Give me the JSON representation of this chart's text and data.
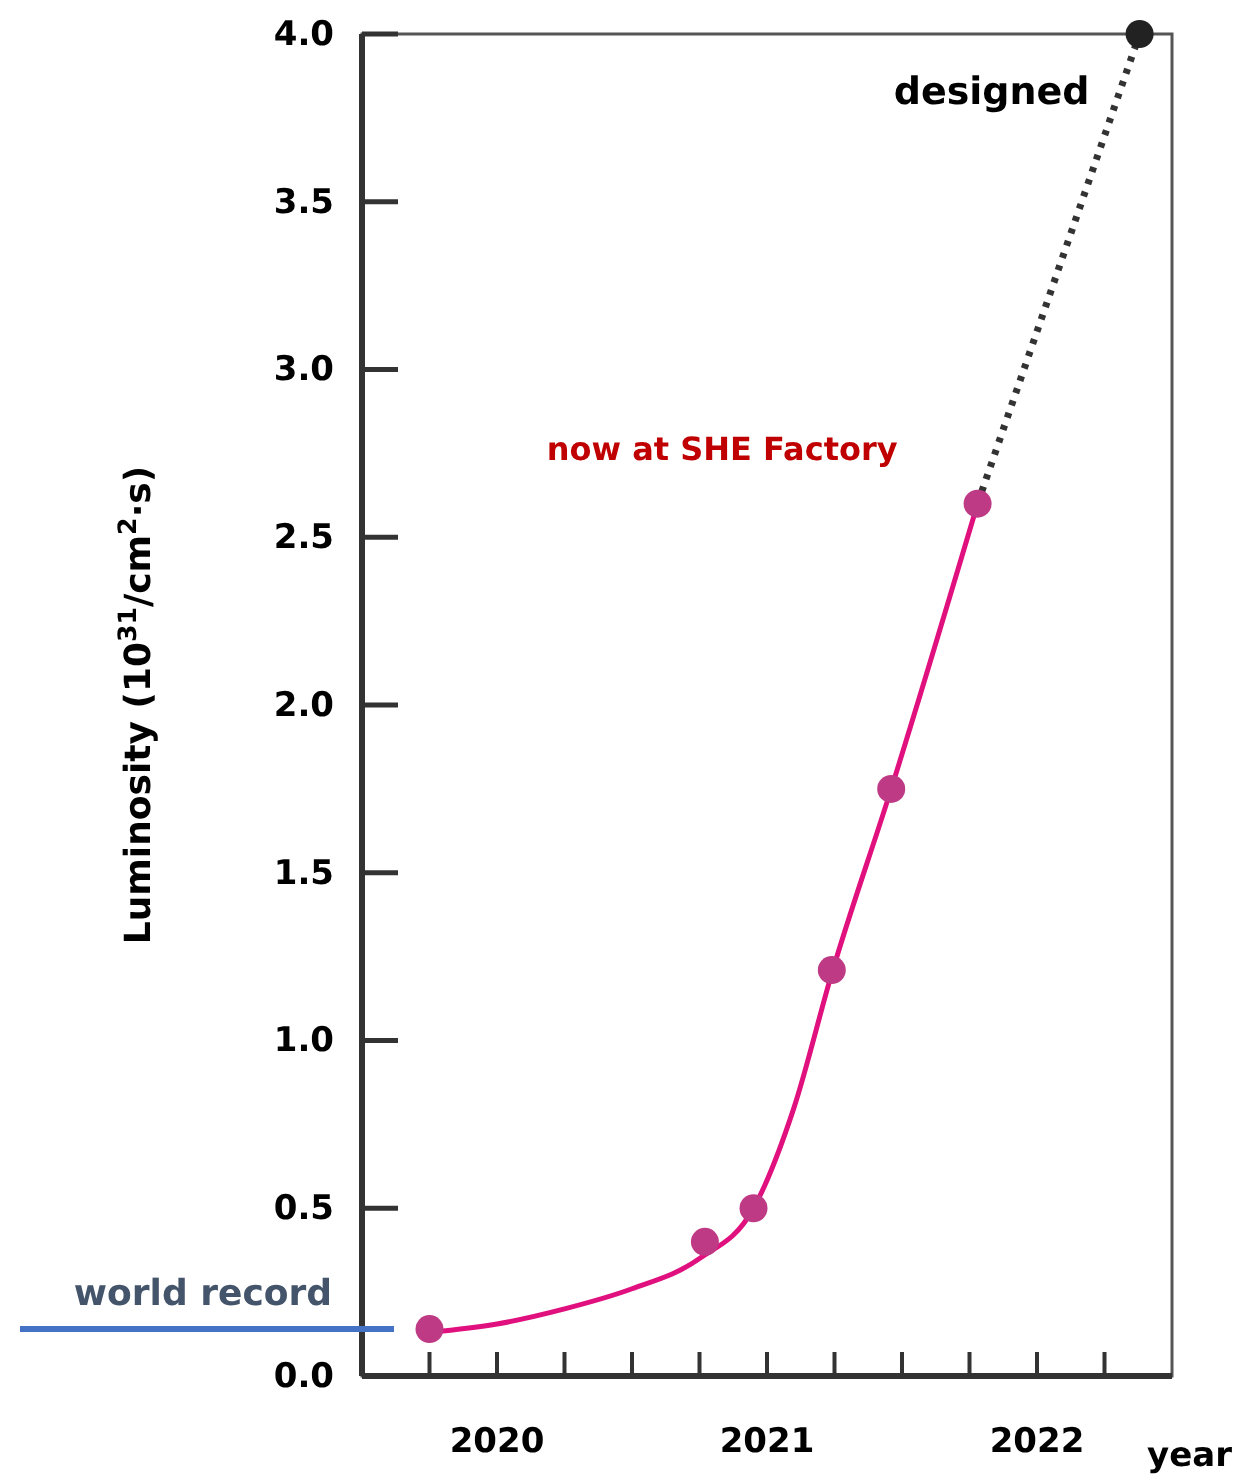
{
  "chart_data": {
    "type": "scatter",
    "ylabel": "Luminosity  (10$^{31}$/cm$^{2}$·s)",
    "xlabel": "year",
    "xlim": [
      2020,
      2023
    ],
    "xticks": [
      {
        "value": 2020.25,
        "label": null
      },
      {
        "value": 2020.5,
        "label": "2020"
      },
      {
        "value": 2020.75,
        "label": null
      },
      {
        "value": 2021,
        "label": null
      },
      {
        "value": 2021.25,
        "label": null
      },
      {
        "value": 2021.5,
        "label": "2021"
      },
      {
        "value": 2021.75,
        "label": null
      },
      {
        "value": 2022,
        "label": null
      },
      {
        "value": 2022.25,
        "label": null
      },
      {
        "value": 2022.5,
        "label": "2022"
      },
      {
        "value": 2022.75,
        "label": null
      }
    ],
    "ylim": [
      0,
      4
    ],
    "yticks": [
      {
        "value": 0,
        "label": "0.0"
      },
      0.5,
      {
        "value": 1,
        "label": "1.0"
      },
      1.5,
      {
        "value": 2,
        "label": "2.0"
      },
      2.5,
      {
        "value": 3,
        "label": "3.0"
      },
      3.5,
      {
        "value": 4,
        "label": "4.0"
      }
    ],
    "grid": false,
    "legend": false,
    "marker": "circle",
    "series": [
      {
        "type": "line",
        "color": "#e0107f",
        "x": [
          2020.25,
          2020.5,
          2020.75,
          2021.0,
          2021.25,
          2021.45,
          2021.6,
          2021.74,
          2021.96,
          2022.28
        ],
        "values": [
          0.13,
          0.155,
          0.2,
          0.26,
          0.35,
          0.5,
          0.8,
          1.2,
          1.75,
          2.6
        ],
        "marker": "none",
        "line_style": "solid"
      },
      {
        "type": "line",
        "color": "#333333",
        "x": [
          2022.28,
          2022.88
        ],
        "values": [
          2.6,
          4.0
        ],
        "marker": "none",
        "line_style": "dotted"
      },
      {
        "type": "scatter",
        "color": "#bf3a85",
        "x": [
          2020.25,
          2021.27,
          2021.45,
          2021.74,
          2021.96,
          2022.28
        ],
        "values": [
          0.14,
          0.4,
          0.5,
          1.21,
          1.75,
          2.6
        ]
      },
      {
        "type": "scatter",
        "color": "#222222",
        "x": [
          2022.88
        ],
        "values": [
          4.0
        ]
      }
    ],
    "ref_lines": [
      {
        "axis": "y",
        "value": 0.14,
        "label": "world record",
        "color": "#4472c4"
      }
    ],
    "annotations": [
      {
        "text": "now at SHE Factory",
        "x": 2022.28,
        "y": 2.6
      },
      {
        "text": "designed",
        "x": 2022.88,
        "y": 4.0
      }
    ]
  }
}
